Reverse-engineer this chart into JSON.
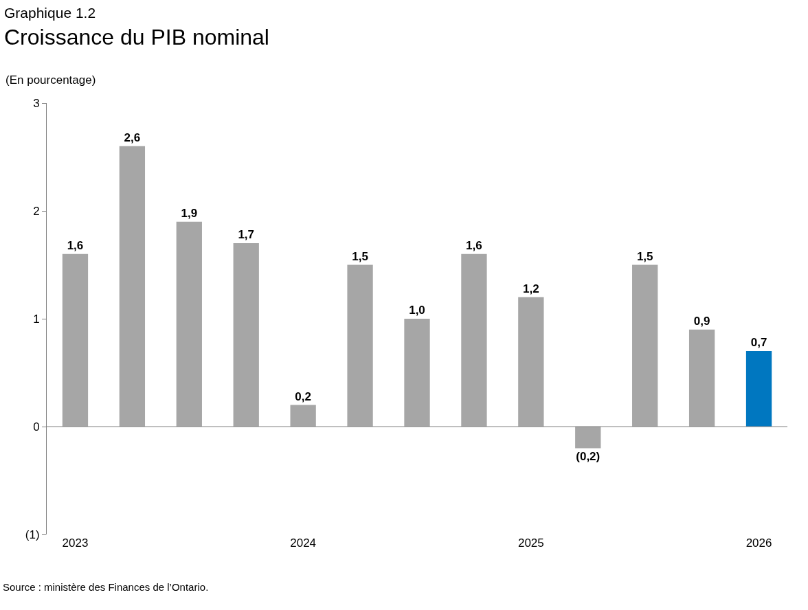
{
  "chart_data": {
    "type": "bar",
    "subtitle": "Graphique 1.2",
    "title": "Croissance du PIB nominal",
    "ylabel": "(En pourcentage)",
    "categories": [
      "2023",
      null,
      null,
      null,
      "2024",
      null,
      null,
      null,
      "2025",
      null,
      null,
      null,
      "2026"
    ],
    "values": [
      1.6,
      2.6,
      1.9,
      1.7,
      0.2,
      1.5,
      1.0,
      1.6,
      1.2,
      -0.2,
      1.5,
      0.9,
      0.7
    ],
    "value_labels": [
      "1,6",
      "2,6",
      "1,9",
      "1,7",
      "0,2",
      "1,5",
      "1,0",
      "1,6",
      "1,2",
      "(0,2)",
      "1,5",
      "0,9",
      "0,7"
    ],
    "colors": [
      "#a6a6a6",
      "#a6a6a6",
      "#a6a6a6",
      "#a6a6a6",
      "#a6a6a6",
      "#a6a6a6",
      "#a6a6a6",
      "#a6a6a6",
      "#a6a6a6",
      "#a6a6a6",
      "#a6a6a6",
      "#a6a6a6",
      "#0077c0"
    ],
    "ylim": [
      -1,
      3
    ],
    "yticks": [
      {
        "value": -1,
        "label": "(1)"
      },
      0,
      1,
      2,
      3
    ],
    "ref_lines": [
      {
        "axis": "y",
        "value": 0,
        "color": "#7f7f7f"
      }
    ],
    "legend": false,
    "annotations": [
      "Source : ministère des Finances de l’Ontario."
    ]
  }
}
